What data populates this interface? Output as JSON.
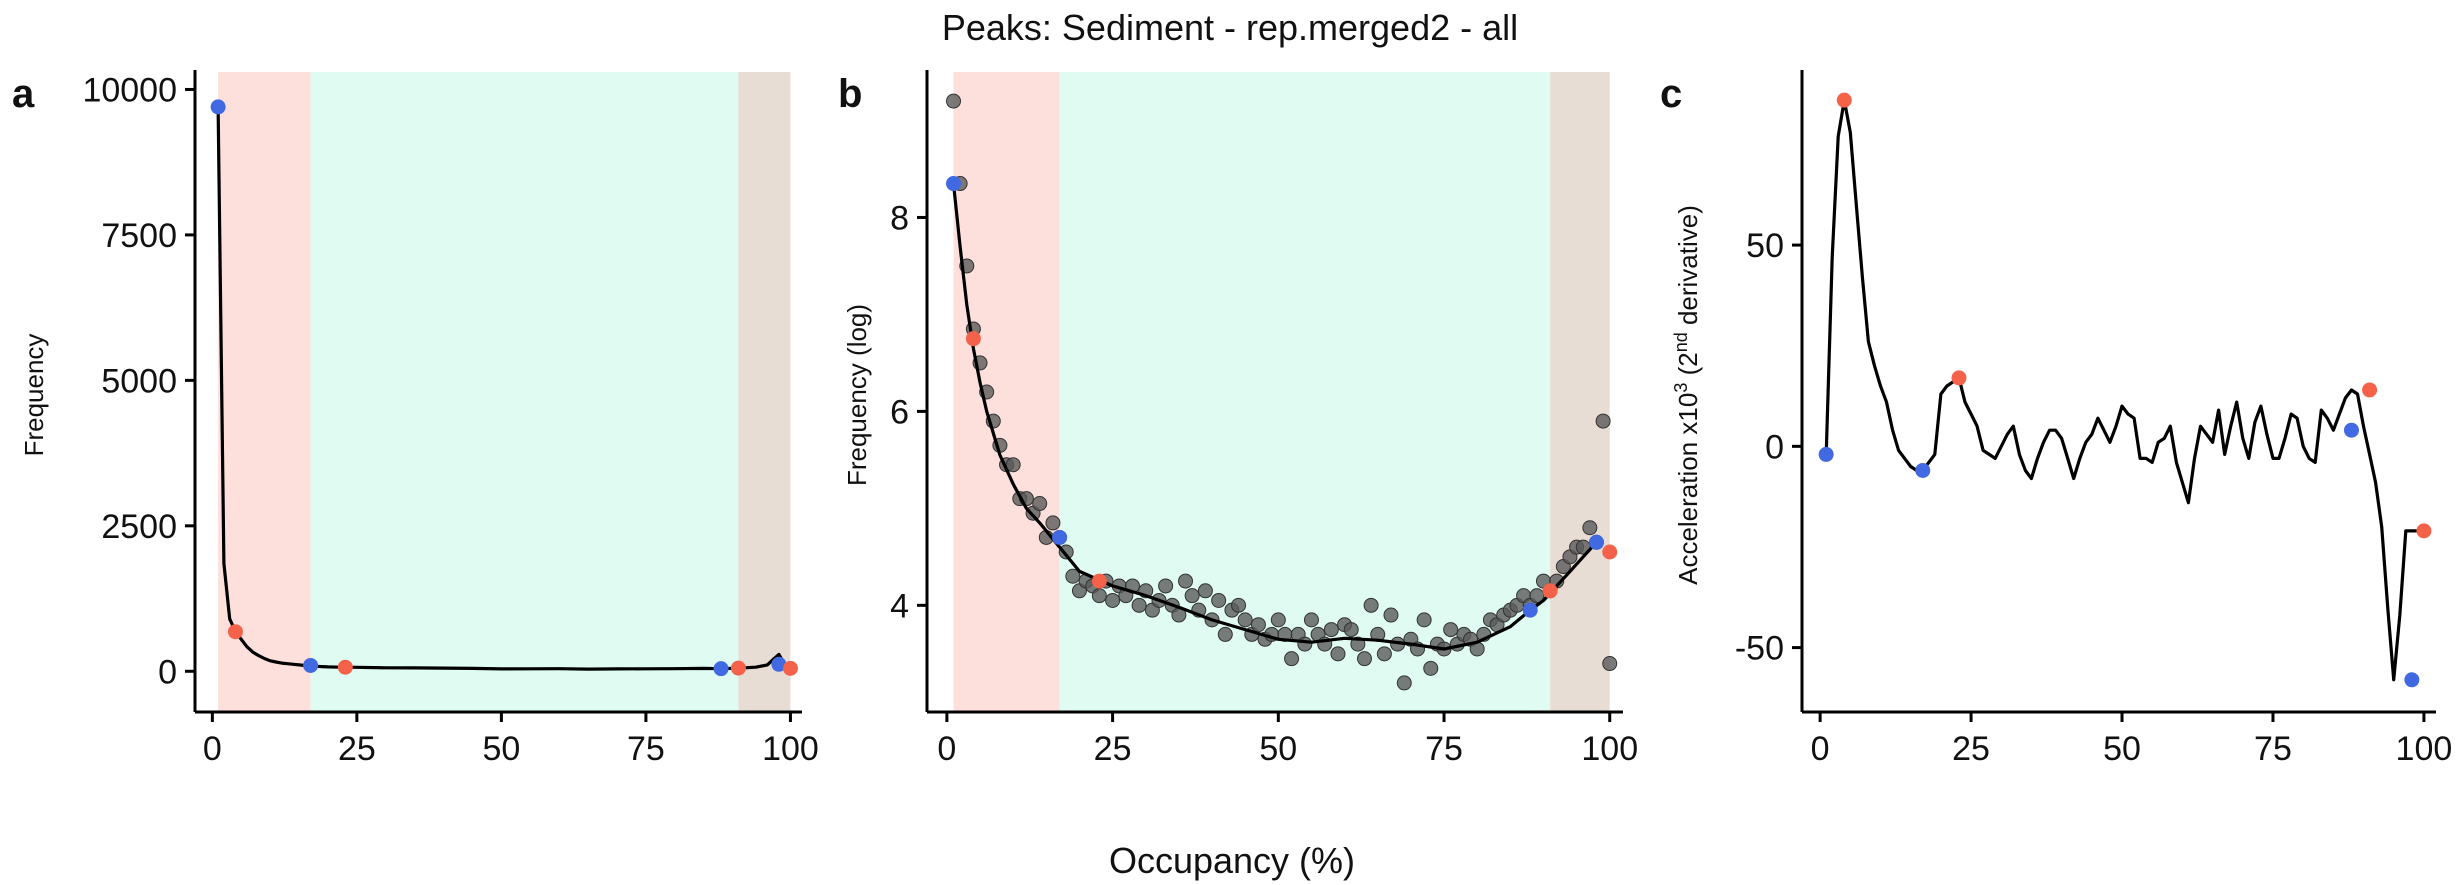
{
  "figure": {
    "title": "Peaks: Sediment - rep.merged2 - all",
    "xlabel": "Occupancy (%)"
  },
  "colors": {
    "zone_low": "#fde0dc",
    "zone_mid": "#e0fcf2",
    "zone_high": "#e8ddd4",
    "point_blue": "#4169e1",
    "point_red": "#f4624a",
    "scatter": "#5a5a5a",
    "line": "#000000"
  },
  "chart_data": [
    {
      "panel": "a",
      "type": "line",
      "ylabel": "Frequency",
      "xlim": [
        -3,
        102
      ],
      "ylim": [
        -700,
        10300
      ],
      "xticks": [
        0,
        25,
        50,
        75,
        100
      ],
      "yticks": [
        0,
        2500,
        5000,
        7500,
        10000
      ],
      "zones": [
        [
          1,
          17
        ],
        [
          17,
          91
        ],
        [
          91,
          100
        ]
      ],
      "line": {
        "x": [
          1,
          2,
          3,
          4,
          5,
          6,
          7,
          8,
          9,
          10,
          11,
          12,
          13,
          14,
          15,
          16,
          17,
          18,
          19,
          20,
          22,
          25,
          30,
          35,
          40,
          45,
          50,
          55,
          60,
          65,
          70,
          75,
          80,
          85,
          88,
          91,
          94,
          96,
          97,
          98,
          99,
          100
        ],
        "y": [
          9700,
          1850,
          900,
          680,
          550,
          420,
          330,
          270,
          220,
          180,
          160,
          140,
          130,
          120,
          110,
          100,
          95,
          85,
          80,
          75,
          70,
          68,
          60,
          58,
          55,
          50,
          40,
          42,
          45,
          38,
          40,
          42,
          45,
          50,
          45,
          55,
          70,
          110,
          200,
          290,
          120,
          50
        ]
      },
      "blue_points": [
        [
          1,
          9700
        ],
        [
          17,
          100
        ],
        [
          88,
          45
        ],
        [
          98,
          120
        ]
      ],
      "red_points": [
        [
          4,
          680
        ],
        [
          23,
          70
        ],
        [
          91,
          55
        ],
        [
          100,
          50
        ]
      ]
    },
    {
      "panel": "b",
      "type": "scatter",
      "ylabel": "Frequency (log)",
      "xlim": [
        -3,
        102
      ],
      "ylim": [
        2.9,
        9.5
      ],
      "xticks": [
        0,
        25,
        50,
        75,
        100
      ],
      "yticks": [
        4,
        6,
        8
      ],
      "zones": [
        [
          1,
          17
        ],
        [
          17,
          91
        ],
        [
          91,
          100
        ]
      ],
      "scatter": {
        "x": [
          1,
          2,
          3,
          4,
          5,
          6,
          7,
          8,
          9,
          10,
          11,
          12,
          13,
          14,
          15,
          16,
          17,
          18,
          19,
          20,
          21,
          22,
          23,
          24,
          25,
          26,
          27,
          28,
          29,
          30,
          31,
          32,
          33,
          34,
          35,
          36,
          37,
          38,
          39,
          40,
          41,
          42,
          43,
          44,
          45,
          46,
          47,
          48,
          49,
          50,
          51,
          52,
          53,
          54,
          55,
          56,
          57,
          58,
          59,
          60,
          61,
          62,
          63,
          64,
          65,
          66,
          67,
          68,
          69,
          70,
          71,
          72,
          73,
          74,
          75,
          76,
          77,
          78,
          79,
          80,
          81,
          82,
          83,
          84,
          85,
          86,
          87,
          88,
          89,
          90,
          91,
          92,
          93,
          94,
          95,
          96,
          97,
          98,
          99,
          100
        ],
        "y": [
          9.2,
          8.35,
          7.5,
          6.85,
          6.5,
          6.2,
          5.9,
          5.65,
          5.45,
          5.45,
          5.1,
          5.1,
          4.95,
          5.05,
          4.7,
          4.85,
          4.7,
          4.55,
          4.3,
          4.15,
          4.25,
          4.2,
          4.1,
          4.25,
          4.05,
          4.2,
          4.1,
          4.2,
          4.0,
          4.15,
          3.95,
          4.05,
          4.2,
          4.0,
          3.9,
          4.25,
          4.1,
          3.95,
          4.15,
          3.85,
          4.05,
          3.7,
          3.95,
          4.0,
          3.85,
          3.7,
          3.8,
          3.65,
          3.7,
          3.85,
          3.7,
          3.45,
          3.7,
          3.6,
          3.85,
          3.7,
          3.6,
          3.75,
          3.5,
          3.8,
          3.75,
          3.6,
          3.45,
          4.0,
          3.7,
          3.5,
          3.9,
          3.6,
          3.2,
          3.65,
          3.55,
          3.85,
          3.35,
          3.6,
          3.55,
          3.75,
          3.6,
          3.7,
          3.65,
          3.55,
          3.7,
          3.85,
          3.8,
          3.9,
          3.95,
          4.0,
          4.1,
          4.0,
          4.1,
          4.25,
          4.15,
          4.25,
          4.4,
          4.5,
          4.6,
          4.6,
          4.8,
          4.65,
          5.9,
          3.4
        ]
      },
      "line": {
        "x": [
          1,
          2,
          3,
          4,
          5,
          6,
          8,
          10,
          12,
          14,
          17,
          20,
          25,
          30,
          35,
          40,
          45,
          50,
          55,
          60,
          65,
          70,
          75,
          80,
          85,
          88,
          90,
          92,
          94,
          96,
          98
        ],
        "y": [
          8.35,
          7.7,
          7.1,
          6.65,
          6.3,
          6.0,
          5.55,
          5.25,
          5.0,
          4.85,
          4.6,
          4.35,
          4.2,
          4.1,
          3.98,
          3.85,
          3.75,
          3.65,
          3.62,
          3.66,
          3.64,
          3.6,
          3.55,
          3.62,
          3.78,
          3.95,
          4.05,
          4.2,
          4.35,
          4.5,
          4.65
        ]
      },
      "blue_points": [
        [
          1,
          8.35
        ],
        [
          17,
          4.7
        ],
        [
          88,
          3.95
        ],
        [
          98,
          4.65
        ]
      ],
      "red_points": [
        [
          4,
          6.75
        ],
        [
          23,
          4.25
        ],
        [
          91,
          4.15
        ],
        [
          100,
          4.55
        ]
      ]
    },
    {
      "panel": "c",
      "type": "line",
      "ylabel": "Acceleration x10^3 (2^nd derivative)",
      "xlim": [
        -3,
        102
      ],
      "ylim": [
        -66,
        93
      ],
      "xticks": [
        0,
        25,
        50,
        75,
        100
      ],
      "yticks": [
        -50,
        0,
        50
      ],
      "line": {
        "x": [
          1,
          2,
          3,
          4,
          5,
          6,
          7,
          8,
          9,
          10,
          11,
          12,
          13,
          14,
          15,
          16,
          17,
          18,
          19,
          20,
          21,
          22,
          23,
          24,
          25,
          26,
          27,
          28,
          29,
          30,
          31,
          32,
          33,
          34,
          35,
          36,
          37,
          38,
          39,
          40,
          41,
          42,
          43,
          44,
          45,
          46,
          47,
          48,
          49,
          50,
          51,
          52,
          53,
          54,
          55,
          56,
          57,
          58,
          59,
          60,
          61,
          62,
          63,
          64,
          65,
          66,
          67,
          68,
          69,
          70,
          71,
          72,
          73,
          74,
          75,
          76,
          77,
          78,
          79,
          80,
          81,
          82,
          83,
          84,
          85,
          86,
          87,
          88,
          89,
          90,
          91,
          92,
          93,
          94,
          95,
          96,
          97,
          98,
          100
        ],
        "y": [
          -2,
          47,
          77,
          86,
          78,
          60,
          42,
          26,
          20,
          15,
          11,
          4,
          -1,
          -3,
          -5,
          -6,
          -6,
          -4,
          -2,
          13,
          15,
          16,
          17,
          11,
          8,
          5,
          -1,
          -2,
          -3,
          0,
          3,
          5,
          -2,
          -6,
          -8,
          -3,
          1,
          4,
          4,
          2,
          -3,
          -8,
          -3,
          1,
          3,
          7,
          4,
          1,
          5,
          10,
          8,
          7,
          -3,
          -3,
          -4,
          1,
          2,
          5,
          -4,
          -9,
          -14,
          -3,
          5,
          3,
          1,
          9,
          -2,
          5,
          11,
          2,
          -3,
          6,
          10,
          3,
          -3,
          -3,
          2,
          8,
          7,
          0,
          -3,
          -4,
          9,
          7,
          4,
          8,
          12,
          14,
          13,
          5,
          -2,
          -9,
          -20,
          -40,
          -58,
          -42,
          -21,
          -21,
          -21
        ]
      },
      "blue_points": [
        [
          1,
          -2
        ],
        [
          17,
          -6
        ],
        [
          88,
          4
        ],
        [
          98,
          -58
        ]
      ],
      "red_points": [
        [
          4,
          86
        ],
        [
          23,
          17
        ],
        [
          91,
          14
        ],
        [
          100,
          -21
        ]
      ]
    }
  ],
  "panels": {
    "a": {
      "letter": "a",
      "ylabel": "Frequency",
      "xticklabels": [
        "0",
        "25",
        "50",
        "75",
        "100"
      ],
      "yticklabels": [
        "0",
        "2500",
        "5000",
        "7500",
        "10000"
      ]
    },
    "b": {
      "letter": "b",
      "ylabel": "Frequency (log)",
      "xticklabels": [
        "0",
        "25",
        "50",
        "75",
        "100"
      ],
      "yticklabels": [
        "4",
        "6",
        "8"
      ]
    },
    "c": {
      "letter": "c",
      "ylabel_main": "Acceleration x10",
      "ylabel_sup1": "3",
      "ylabel_mid": " (2",
      "ylabel_sup2": "nd",
      "ylabel_end": " derivative)",
      "xticklabels": [
        "0",
        "25",
        "50",
        "75",
        "100"
      ],
      "yticklabels": [
        "-50",
        "0",
        "50"
      ]
    }
  }
}
